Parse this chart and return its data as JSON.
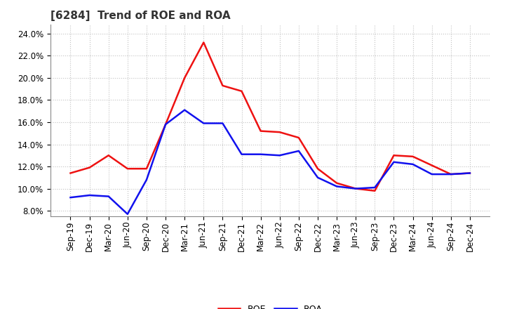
{
  "title": "[6284]  Trend of ROE and ROA",
  "labels": [
    "Sep-19",
    "Dec-19",
    "Mar-20",
    "Jun-20",
    "Sep-20",
    "Dec-20",
    "Mar-21",
    "Jun-21",
    "Sep-21",
    "Dec-21",
    "Mar-22",
    "Jun-22",
    "Sep-22",
    "Dec-22",
    "Mar-23",
    "Jun-23",
    "Sep-23",
    "Dec-23",
    "Mar-24",
    "Jun-24",
    "Sep-24",
    "Dec-24"
  ],
  "ROE": [
    11.4,
    11.9,
    13.0,
    11.8,
    11.8,
    15.8,
    20.0,
    23.2,
    19.3,
    18.8,
    15.2,
    15.1,
    14.6,
    11.8,
    10.5,
    10.0,
    9.8,
    13.0,
    12.9,
    12.1,
    11.3,
    11.4
  ],
  "ROA": [
    9.2,
    9.4,
    9.3,
    7.7,
    10.8,
    15.8,
    17.1,
    15.9,
    15.9,
    13.1,
    13.1,
    13.0,
    13.4,
    11.0,
    10.2,
    10.0,
    10.1,
    12.4,
    12.2,
    11.3,
    11.3,
    11.4
  ],
  "ROE_color": "#EE1111",
  "ROA_color": "#1111EE",
  "background_color": "#FFFFFF",
  "plot_bg_color": "#FFFFFF",
  "grid_color": "#BBBBBB",
  "ylim": [
    7.5,
    24.8
  ],
  "yticks": [
    8.0,
    10.0,
    12.0,
    14.0,
    16.0,
    18.0,
    20.0,
    22.0,
    24.0
  ],
  "title_fontsize": 11,
  "title_color": "#333333",
  "tick_fontsize": 8.5,
  "legend_fontsize": 9,
  "line_width": 1.8
}
